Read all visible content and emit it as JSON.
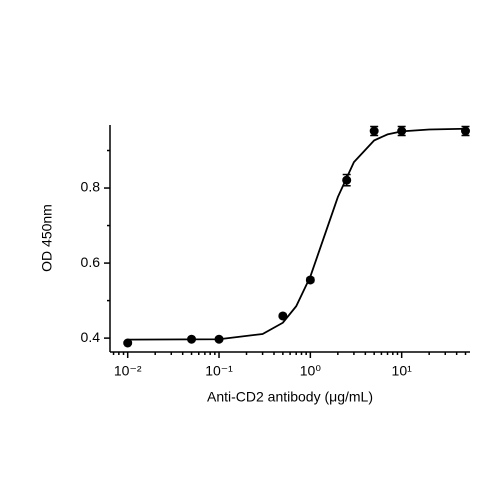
{
  "chart_data": {
    "type": "scatter",
    "xlabel": "Anti-CD2 antibody (μg/mL)",
    "ylabel": "OD 450nm",
    "x": [
      0.01,
      0.05,
      0.1,
      0.5,
      1,
      2.5,
      5,
      10,
      50
    ],
    "values": [
      0.387,
      0.397,
      0.397,
      0.459,
      0.555,
      0.821,
      0.952,
      0.952,
      0.952
    ],
    "errors": [
      0.003,
      0.003,
      0.003,
      0.004,
      0.005,
      0.015,
      0.012,
      0.012,
      0.012
    ],
    "color": "#000000",
    "curve": {
      "x": [
        0.01,
        0.1,
        0.3,
        0.5,
        0.7,
        1,
        1.5,
        2,
        3,
        5,
        7,
        10,
        20,
        50
      ],
      "values": [
        0.396,
        0.397,
        0.411,
        0.441,
        0.485,
        0.564,
        0.688,
        0.776,
        0.869,
        0.927,
        0.943,
        0.951,
        0.956,
        0.958
      ]
    },
    "xscale": "log",
    "xlim": [
      0.0064,
      56
    ],
    "xticks": [
      {
        "value": 0.01,
        "label": "10⁻²"
      },
      {
        "value": 0.1,
        "label": "10⁻¹"
      },
      {
        "value": 1,
        "label": "10⁰"
      },
      {
        "value": 10,
        "label": "10¹"
      }
    ],
    "xminorticks": [
      0.007,
      0.008,
      0.009,
      0.02,
      0.03,
      0.04,
      0.05,
      0.06,
      0.07,
      0.08,
      0.09,
      0.2,
      0.3,
      0.4,
      0.5,
      0.6,
      0.7,
      0.8,
      0.9,
      2,
      3,
      4,
      5,
      6,
      7,
      8,
      9,
      20,
      30,
      40,
      50
    ],
    "ylim": [
      0.363,
      0.968
    ],
    "yticks": [
      0.4,
      0.6,
      0.8
    ],
    "yminorticks": [
      0.5,
      0.7,
      0.9
    ],
    "grid": false
  }
}
